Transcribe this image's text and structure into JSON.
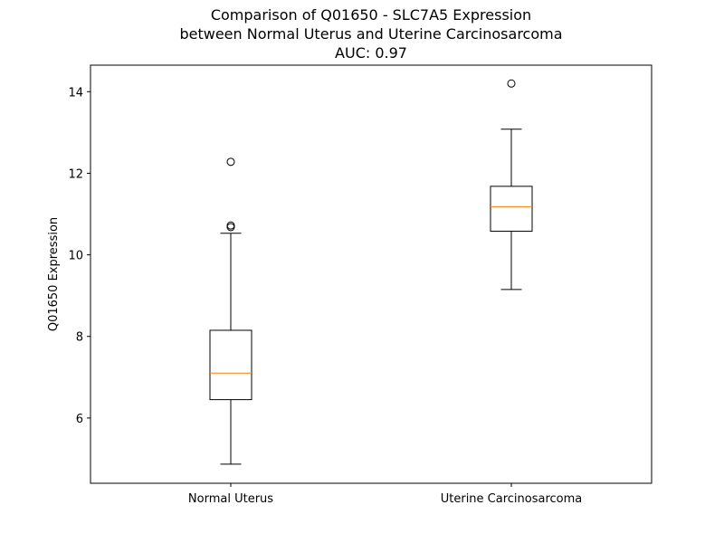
{
  "chart_data": {
    "type": "box",
    "title_lines": [
      "Comparison of Q01650 - SLC7A5 Expression",
      "between Normal Uterus and Uterine Carcinosarcoma",
      "AUC: 0.97"
    ],
    "ylabel": "Q01650 Expression",
    "xlabel": "",
    "ylim": [
      4.4,
      14.65
    ],
    "yticks": [
      6,
      8,
      10,
      12,
      14
    ],
    "grid": false,
    "colors": {
      "box": "#000000",
      "median": "#ff7f0e",
      "background": "#ffffff"
    },
    "categories": [
      "Normal Uterus",
      "Uterine Carcinosarcoma"
    ],
    "boxes": [
      {
        "name": "Normal Uterus",
        "whisker_low": 4.87,
        "q1": 6.45,
        "median": 7.1,
        "q3": 8.15,
        "whisker_high": 10.53,
        "outliers": [
          10.68,
          10.72,
          12.28
        ]
      },
      {
        "name": "Uterine Carcinosarcoma",
        "whisker_low": 9.15,
        "q1": 10.58,
        "median": 11.18,
        "q3": 11.68,
        "whisker_high": 13.08,
        "outliers": [
          14.2
        ]
      }
    ]
  }
}
